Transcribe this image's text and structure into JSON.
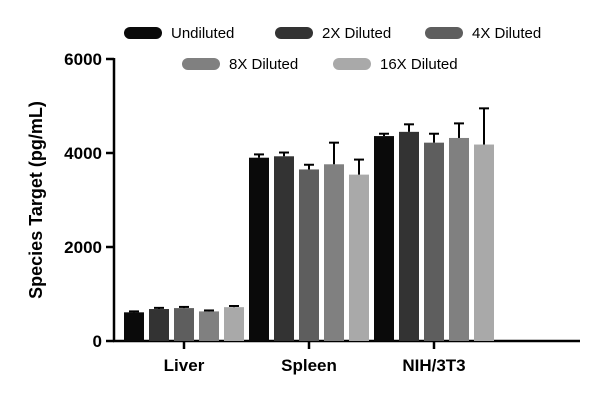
{
  "chart_data": {
    "type": "bar",
    "title": "",
    "xlabel": "",
    "ylabel": "Species Target (pg/mL)",
    "ylim": [
      0,
      6000
    ],
    "yticks": [
      0,
      2000,
      4000,
      6000
    ],
    "categories": [
      "Liver",
      "Spleen",
      "NIH/3T3"
    ],
    "legend_position": "top",
    "series": [
      {
        "name": "Undiluted",
        "color": "#0a0a0a",
        "values": [
          610,
          3900,
          4360
        ],
        "errors": [
          20,
          70,
          50
        ]
      },
      {
        "name": "2X Diluted",
        "color": "#333333",
        "values": [
          680,
          3930,
          4450
        ],
        "errors": [
          25,
          80,
          160
        ]
      },
      {
        "name": "4X Diluted",
        "color": "#5e5e5e",
        "values": [
          700,
          3650,
          4220
        ],
        "errors": [
          25,
          100,
          190
        ]
      },
      {
        "name": "8X Diluted",
        "color": "#808080",
        "values": [
          630,
          3760,
          4320
        ],
        "errors": [
          20,
          460,
          310
        ]
      },
      {
        "name": "16X Diluted",
        "color": "#a9a9a9",
        "values": [
          720,
          3540,
          4180
        ],
        "errors": [
          25,
          320,
          770
        ]
      }
    ]
  }
}
